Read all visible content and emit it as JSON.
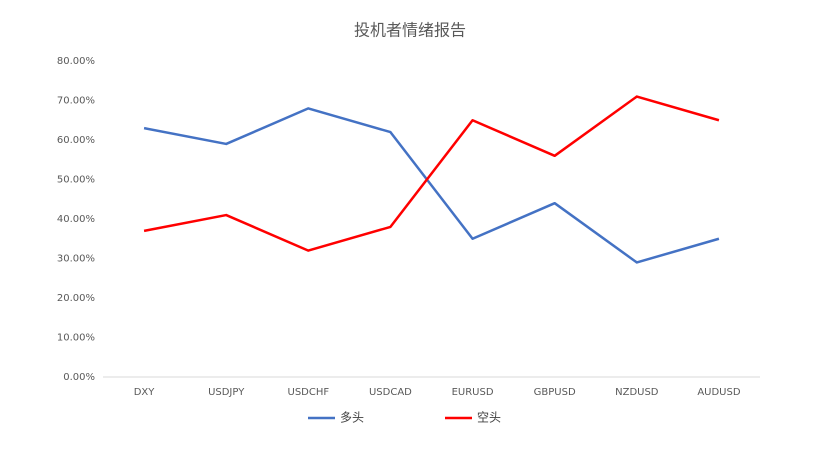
{
  "chart_data": {
    "type": "line",
    "title": "投机者情绪报告",
    "categories": [
      "DXY",
      "USDJPY",
      "USDCHF",
      "USDCAD",
      "EURUSD",
      "GBPUSD",
      "NZDUSD",
      "AUDUSD"
    ],
    "series": [
      {
        "name": "多头",
        "color": "#4472c4",
        "values": [
          63,
          59,
          68,
          62,
          35,
          44,
          29,
          35
        ]
      },
      {
        "name": "空头",
        "color": "#ff0000",
        "values": [
          37,
          41,
          32,
          38,
          65,
          56,
          71,
          65
        ]
      }
    ],
    "ylim": [
      0,
      80
    ],
    "yticks": [
      {
        "value": 0,
        "label": "0.00%"
      },
      {
        "value": 10,
        "label": "10.00%"
      },
      {
        "value": 20,
        "label": "20.00%"
      },
      {
        "value": 30,
        "label": "30.00%"
      },
      {
        "value": 40,
        "label": "40.00%"
      },
      {
        "value": 50,
        "label": "50.00%"
      },
      {
        "value": 60,
        "label": "60.00%"
      },
      {
        "value": 70,
        "label": "70.00%"
      },
      {
        "value": 80,
        "label": "80.00%"
      }
    ],
    "grid": false,
    "legend": "bottom"
  }
}
